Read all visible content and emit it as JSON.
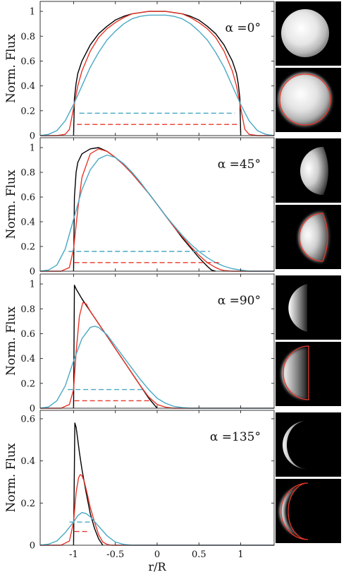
{
  "chart_data": [
    {
      "type": "line",
      "annotation": "α =0°",
      "ylabel": "Norm. Flux",
      "xlim": [
        -1.4,
        1.4
      ],
      "ylim": [
        0,
        1.08
      ],
      "yticks": [
        0,
        0.2,
        0.4,
        0.6,
        0.8,
        1
      ],
      "series": [
        {
          "color": "#000000",
          "style": "solid",
          "x": [
            -1.0,
            -0.99,
            -0.97,
            -0.95,
            -0.9,
            -0.8,
            -0.7,
            -0.6,
            -0.5,
            -0.4,
            -0.3,
            -0.2,
            -0.1,
            0.0,
            0.1,
            0.2,
            0.3,
            0.4,
            0.5,
            0.6,
            0.7,
            0.8,
            0.9,
            0.95,
            0.97,
            0.99,
            1.0
          ],
          "y": [
            0.0,
            0.3,
            0.42,
            0.5,
            0.6,
            0.73,
            0.82,
            0.88,
            0.93,
            0.96,
            0.98,
            0.99,
            1.0,
            1.0,
            1.0,
            0.99,
            0.98,
            0.96,
            0.93,
            0.88,
            0.82,
            0.73,
            0.6,
            0.5,
            0.42,
            0.3,
            0.0
          ]
        },
        {
          "color": "#e8372a",
          "style": "solid",
          "x": [
            -1.4,
            -1.2,
            -1.1,
            -1.05,
            -1.0,
            -0.95,
            -0.9,
            -0.8,
            -0.7,
            -0.6,
            -0.5,
            -0.4,
            -0.3,
            -0.2,
            -0.1,
            0.0,
            0.1,
            0.2,
            0.3,
            0.4,
            0.5,
            0.6,
            0.7,
            0.8,
            0.9,
            0.95,
            1.0,
            1.05,
            1.1,
            1.2,
            1.4
          ],
          "y": [
            0.0,
            0.0,
            0.01,
            0.05,
            0.22,
            0.4,
            0.52,
            0.68,
            0.79,
            0.86,
            0.91,
            0.95,
            0.98,
            0.99,
            1.0,
            1.0,
            1.0,
            0.99,
            0.98,
            0.95,
            0.91,
            0.86,
            0.79,
            0.68,
            0.52,
            0.4,
            0.22,
            0.05,
            0.01,
            0.0,
            0.0
          ]
        },
        {
          "color": "#4aa8c4",
          "style": "solid",
          "x": [
            -1.4,
            -1.3,
            -1.2,
            -1.1,
            -1.0,
            -0.9,
            -0.8,
            -0.7,
            -0.6,
            -0.5,
            -0.4,
            -0.3,
            -0.2,
            -0.1,
            0.0,
            0.1,
            0.2,
            0.3,
            0.4,
            0.5,
            0.6,
            0.7,
            0.8,
            0.9,
            1.0,
            1.1,
            1.2,
            1.3,
            1.4
          ],
          "y": [
            0.0,
            0.01,
            0.04,
            0.12,
            0.25,
            0.4,
            0.55,
            0.67,
            0.77,
            0.84,
            0.9,
            0.94,
            0.96,
            0.97,
            0.97,
            0.97,
            0.96,
            0.94,
            0.9,
            0.84,
            0.77,
            0.67,
            0.55,
            0.4,
            0.25,
            0.12,
            0.04,
            0.01,
            0.0
          ]
        },
        {
          "color": "#4aa8c4",
          "style": "dashed",
          "x": [
            -0.93,
            0.93
          ],
          "y": [
            0.18,
            0.18
          ]
        },
        {
          "color": "#e8372a",
          "style": "dashed",
          "x": [
            -0.96,
            0.96
          ],
          "y": [
            0.09,
            0.09
          ]
        }
      ]
    },
    {
      "type": "line",
      "annotation": "α =45°",
      "ylabel": "Norm. Flux",
      "xlim": [
        -1.4,
        1.4
      ],
      "ylim": [
        0,
        1.08
      ],
      "yticks": [
        0,
        0.2,
        0.4,
        0.6,
        0.8,
        1
      ],
      "series": [
        {
          "color": "#000000",
          "style": "solid",
          "x": [
            -1.0,
            -0.99,
            -0.97,
            -0.95,
            -0.9,
            -0.8,
            -0.7,
            -0.6,
            -0.5,
            -0.4,
            -0.3,
            -0.2,
            -0.1,
            0.0,
            0.1,
            0.2,
            0.3,
            0.4,
            0.5,
            0.6,
            0.65,
            0.7
          ],
          "y": [
            0.0,
            0.6,
            0.8,
            0.88,
            0.95,
            0.99,
            1.0,
            0.97,
            0.92,
            0.86,
            0.79,
            0.71,
            0.63,
            0.54,
            0.45,
            0.36,
            0.27,
            0.19,
            0.11,
            0.04,
            0.01,
            0.0
          ]
        },
        {
          "color": "#e8372a",
          "style": "solid",
          "x": [
            -1.4,
            -1.15,
            -1.05,
            -1.0,
            -0.95,
            -0.9,
            -0.8,
            -0.7,
            -0.6,
            -0.5,
            -0.4,
            -0.3,
            -0.2,
            -0.1,
            0.0,
            0.1,
            0.2,
            0.3,
            0.4,
            0.5,
            0.6,
            0.7,
            0.75,
            0.8,
            0.9,
            1.0,
            1.4
          ],
          "y": [
            0.0,
            0.0,
            0.03,
            0.18,
            0.5,
            0.76,
            0.95,
            0.99,
            0.97,
            0.92,
            0.86,
            0.79,
            0.71,
            0.63,
            0.54,
            0.45,
            0.36,
            0.28,
            0.2,
            0.13,
            0.07,
            0.03,
            0.015,
            0.005,
            0.0,
            0.0,
            0.0
          ]
        },
        {
          "color": "#4aa8c4",
          "style": "solid",
          "x": [
            -1.4,
            -1.3,
            -1.2,
            -1.1,
            -1.0,
            -0.9,
            -0.8,
            -0.7,
            -0.6,
            -0.5,
            -0.4,
            -0.3,
            -0.2,
            -0.1,
            0.0,
            0.1,
            0.2,
            0.3,
            0.4,
            0.5,
            0.6,
            0.7,
            0.8,
            0.9,
            1.0,
            1.1,
            1.2,
            1.4
          ],
          "y": [
            0.0,
            0.01,
            0.05,
            0.18,
            0.42,
            0.66,
            0.82,
            0.91,
            0.94,
            0.92,
            0.87,
            0.8,
            0.72,
            0.63,
            0.54,
            0.45,
            0.37,
            0.29,
            0.22,
            0.16,
            0.11,
            0.07,
            0.04,
            0.02,
            0.01,
            0.0,
            0.0,
            0.0
          ]
        },
        {
          "color": "#4aa8c4",
          "style": "dashed",
          "x": [
            -1.06,
            0.63
          ],
          "y": [
            0.16,
            0.16
          ]
        },
        {
          "color": "#e8372a",
          "style": "dashed",
          "x": [
            -0.99,
            0.77
          ],
          "y": [
            0.07,
            0.07
          ]
        }
      ]
    },
    {
      "type": "line",
      "annotation": "α =90°",
      "ylabel": "Norm. Flux",
      "xlim": [
        -1.4,
        1.4
      ],
      "ylim": [
        0,
        1.08
      ],
      "yticks": [
        0,
        0.2,
        0.4,
        0.6,
        0.8,
        1
      ],
      "series": [
        {
          "color": "#000000",
          "style": "solid",
          "x": [
            -1.0,
            -0.99,
            -0.97,
            -0.9,
            -0.8,
            -0.7,
            -0.6,
            -0.5,
            -0.4,
            -0.3,
            -0.2,
            -0.1,
            0.0
          ],
          "y": [
            0.0,
            0.99,
            0.96,
            0.88,
            0.78,
            0.68,
            0.58,
            0.48,
            0.38,
            0.28,
            0.18,
            0.08,
            0.0
          ]
        },
        {
          "color": "#e8372a",
          "style": "solid",
          "x": [
            -1.4,
            -1.15,
            -1.05,
            -1.0,
            -0.97,
            -0.93,
            -0.89,
            -0.85,
            -0.8,
            -0.7,
            -0.6,
            -0.5,
            -0.4,
            -0.3,
            -0.2,
            -0.1,
            0.0,
            0.1,
            0.2,
            0.3,
            1.4
          ],
          "y": [
            0.0,
            0.0,
            0.03,
            0.15,
            0.45,
            0.74,
            0.85,
            0.84,
            0.78,
            0.68,
            0.58,
            0.48,
            0.38,
            0.28,
            0.18,
            0.09,
            0.03,
            0.008,
            0.0,
            0.0,
            0.0
          ]
        },
        {
          "color": "#4aa8c4",
          "style": "solid",
          "x": [
            -1.4,
            -1.3,
            -1.2,
            -1.1,
            -1.0,
            -0.9,
            -0.8,
            -0.75,
            -0.7,
            -0.6,
            -0.5,
            -0.4,
            -0.3,
            -0.2,
            -0.1,
            0.0,
            0.1,
            0.2,
            0.3,
            0.4,
            0.6,
            1.4
          ],
          "y": [
            0.0,
            0.01,
            0.06,
            0.18,
            0.38,
            0.56,
            0.65,
            0.66,
            0.65,
            0.59,
            0.5,
            0.41,
            0.32,
            0.23,
            0.15,
            0.08,
            0.04,
            0.015,
            0.005,
            0.0,
            0.0,
            0.0
          ]
        },
        {
          "color": "#4aa8c4",
          "style": "dashed",
          "x": [
            -1.07,
            -0.14
          ],
          "y": [
            0.15,
            0.15
          ]
        },
        {
          "color": "#e8372a",
          "style": "dashed",
          "x": [
            -0.99,
            -0.07
          ],
          "y": [
            0.06,
            0.06
          ]
        }
      ]
    },
    {
      "type": "line",
      "annotation": "α =135°",
      "ylabel": "Norm. Flux",
      "xlabel": "r/R",
      "xlim": [
        -1.4,
        1.4
      ],
      "ylim": [
        0,
        0.64
      ],
      "yticks": [
        0,
        0.2,
        0.4,
        0.6
      ],
      "xticks": [
        -1,
        -0.5,
        0,
        0.5,
        1
      ],
      "xticklabels": [
        "-1",
        "-0.5",
        "0",
        "0.5",
        "1"
      ],
      "series": [
        {
          "color": "#000000",
          "style": "solid",
          "x": [
            -1.0,
            -0.985,
            -0.97,
            -0.95,
            -0.93,
            -0.9,
            -0.85,
            -0.8,
            -0.75,
            -0.7,
            -0.65
          ],
          "y": [
            0.0,
            0.58,
            0.56,
            0.5,
            0.44,
            0.36,
            0.25,
            0.15,
            0.08,
            0.03,
            0.0
          ]
        },
        {
          "color": "#e8372a",
          "style": "solid",
          "x": [
            -1.4,
            -1.15,
            -1.05,
            -1.0,
            -0.97,
            -0.94,
            -0.92,
            -0.9,
            -0.87,
            -0.84,
            -0.8,
            -0.75,
            -0.7,
            -0.65,
            -0.6,
            -0.55,
            1.4
          ],
          "y": [
            0.0,
            0.0,
            0.02,
            0.11,
            0.25,
            0.32,
            0.335,
            0.33,
            0.3,
            0.25,
            0.18,
            0.11,
            0.05,
            0.015,
            0.004,
            0.0,
            0.0
          ]
        },
        {
          "color": "#4aa8c4",
          "style": "solid",
          "x": [
            -1.4,
            -1.3,
            -1.2,
            -1.1,
            -1.0,
            -0.95,
            -0.9,
            -0.85,
            -0.8,
            -0.7,
            -0.6,
            -0.5,
            -0.4,
            -0.3,
            1.4
          ],
          "y": [
            0.0,
            0.005,
            0.02,
            0.06,
            0.11,
            0.14,
            0.155,
            0.15,
            0.135,
            0.09,
            0.045,
            0.015,
            0.004,
            0.0,
            0.0
          ]
        },
        {
          "color": "#4aa8c4",
          "style": "dashed",
          "x": [
            -1.05,
            -0.78
          ],
          "y": [
            0.11,
            0.11
          ]
        },
        {
          "color": "#e8372a",
          "style": "dashed",
          "x": [
            -0.99,
            -0.83
          ],
          "y": [
            0.065,
            0.065
          ]
        }
      ]
    }
  ]
}
